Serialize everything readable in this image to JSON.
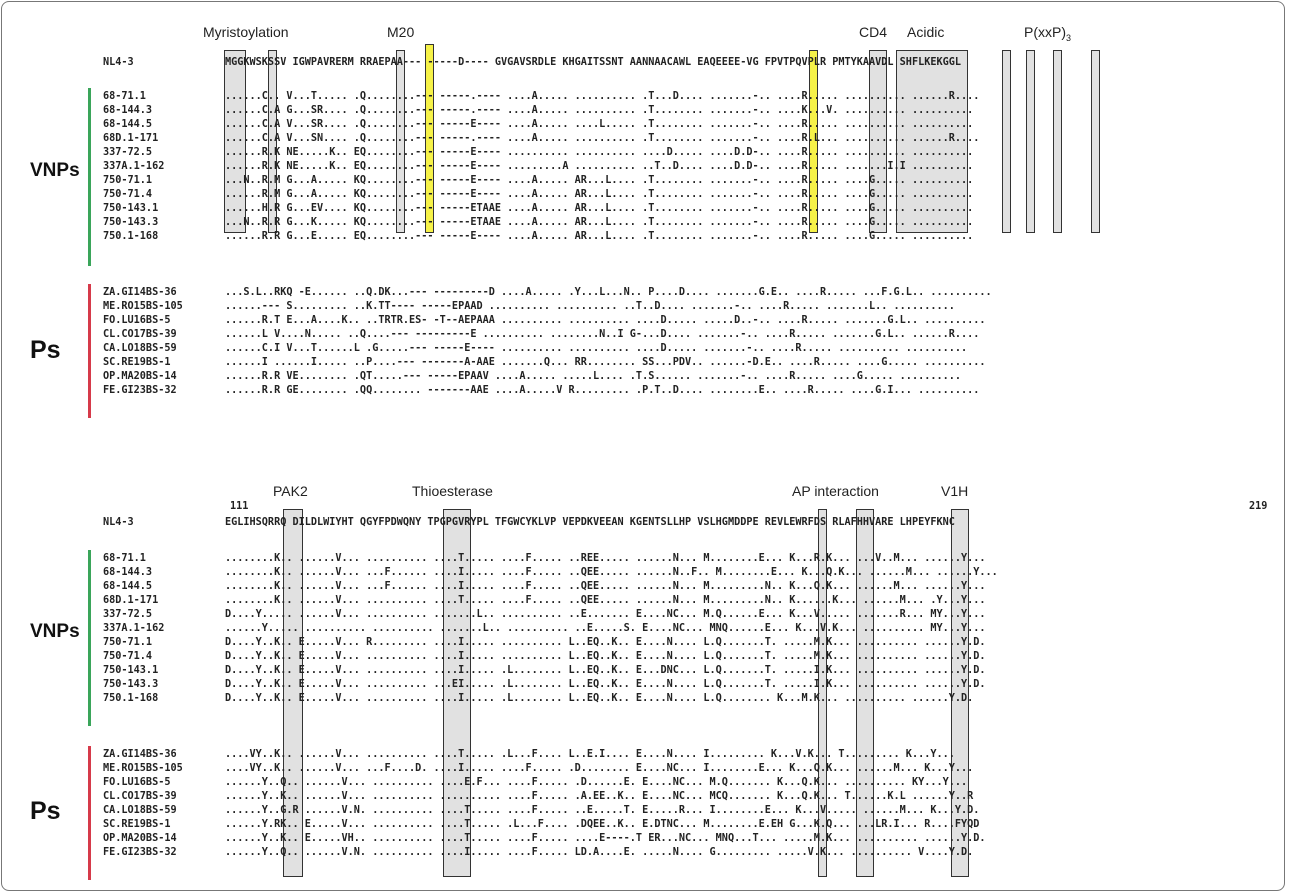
{
  "colors": {
    "vnp_bar": "#3aa55a",
    "p_bar": "#d63a4a",
    "highlight_yellow": "#f5f028",
    "highlight_gray": "#d6d6d6"
  },
  "panels": [
    {
      "start_number": "",
      "end_number": "",
      "regions": [
        {
          "label": "Myristoylation",
          "sub": ""
        },
        {
          "label": "M20",
          "sub": ""
        },
        {
          "label": "CD4",
          "sub": ""
        },
        {
          "label": "Acidic",
          "sub": ""
        },
        {
          "label": "P(xxP)",
          "sub": "3"
        }
      ],
      "reference": {
        "name": "NL4-3",
        "seq": "MGGKWSKSSV IGWPAVRERM RRAEPAA--- -----D---- GVGAVSRDLE KHGAITSSNT AANNAACAWL EAQEEEE-VG FPVTPQVPLR PMTYKAAVDL SHFLKEKGGL"
      },
      "groups": [
        {
          "label": "VNPs",
          "rows": [
            {
              "name": "68-71.1",
              "seq": "......C.. V...T..... .Q........--- -----.---- ....A..... .......... .T...D.... .......-.. ....R..... .......... ......R...."
            },
            {
              "name": "68-144.3",
              "seq": "......C.A G...SR.... .Q........--- -----.---- ....A..... .......... .T........ .......-.. ....K...V. .......... .........."
            },
            {
              "name": "68-144.5",
              "seq": "......C.A V...SR.... .Q........--- -----E---- ....A..... ....L..... .T........ .......-.. ....R..... .......... .........."
            },
            {
              "name": "68D.1-171",
              "seq": "......C.A V...SN.... .Q........--- -----.---- ....A..... .......... .T........ .......-.. ....R.L... .......... ......R...."
            },
            {
              "name": "337-72.5",
              "seq": "......R.K NE.....K.. EQ........--- -----E---- .......... .......... ....D..... ....D.D-.. ....R..... .......... .........."
            },
            {
              "name": "337A.1-162",
              "seq": "......R.K NE.....K.. EQ........--- -----E---- .........A .......... ..T..D.... ....D.D-.. ....R..... .......I.I .........."
            },
            {
              "name": "750-71.1",
              "seq": "...N..R.M G...A..... KQ........--- -----E---- ....A..... AR...L.... .T........ .......-.. ....R..... ....G..... .........."
            },
            {
              "name": "750-71.4",
              "seq": "......R.M G...A..... KQ........--- -----E---- ....A..... AR...L.... .T........ .......-.. ....R..... ....G..... .........."
            },
            {
              "name": "750-143.1",
              "seq": "......H.R G...EV.... KQ........--- -----ETAAE ....A..... AR...L.... .T........ .......-.. ....R..... ....G..... .........."
            },
            {
              "name": "750-143.3",
              "seq": "...N..R.R G...K..... KQ........--- -----ETAAE ....A..... AR...L.... .T........ .......-.. ....R..... ....G..... .........."
            },
            {
              "name": "750.1-168",
              "seq": "......R.R G...E..... EQ........--- -----E---- ....A..... AR...L.... .T........ .......-.. ....R..... ....G..... .........."
            }
          ]
        },
        {
          "label": "Ps",
          "rows": [
            {
              "name": "ZA.GI14BS-36",
              "seq": "...S.L..RKQ -E...... ..Q.DK...--- ---------D ....A..... .Y...L...N.. P....D.... .......G.E.. ....R..... ...F.G.L.. .........."
            },
            {
              "name": "ME.RO15BS-105",
              "seq": "......--- S......... ..K.TT---- -----EPAAD .......... .......... ..T..D.... .......-.. ....R..... .......L.. .........."
            },
            {
              "name": "FO.LU16BS-5",
              "seq": "......R.T E...A....K.. ..TRTR.ES- -T--AEPAAA .......... .......... ....D..... .....D..-.. ....R..... .......G.L.. .........."
            },
            {
              "name": "CL.CO17BS-39",
              "seq": "......L V....N..... ..Q....--- ---------E .......... ........N..I G-...D.... .......-.. ....R..... .......G.L.. ......R...."
            },
            {
              "name": "CA.LO18BS-59",
              "seq": "......C.I V...T......L .G.....--- -----E---- .......... .......... ....D..... .......-.. ....R..... .......... .........."
            },
            {
              "name": "SC.RE19BS-1",
              "seq": "......I ......I..... ..P....--- -------A-AAE .......Q... RR........ SS...PDV.. ......-D.E.. ....R..... ....G..... .........."
            },
            {
              "name": "OP.MA20BS-14",
              "seq": "......R.R VE........ .QT.....--- -----EPAAV ....A..... .....L.... .T.S...... .......-.. ....R..... ....G..... .........."
            },
            {
              "name": "FE.GI23BS-32",
              "seq": "......R.R GE........ .QQ........ -------AAE ....A.....V R......... .P.T..D.... ........E.. ....R..... ....G.I... .........."
            }
          ]
        }
      ]
    },
    {
      "start_number": "111",
      "end_number": "219",
      "regions": [
        {
          "label": "PAK2",
          "sub": ""
        },
        {
          "label": "Thioesterase",
          "sub": ""
        },
        {
          "label": "AP interaction",
          "sub": ""
        },
        {
          "label": "V1H",
          "sub": ""
        }
      ],
      "reference": {
        "name": "NL4-3",
        "seq": "EGLIHSQRRQ DILDLWIYHT QGYFPDWQNY TPGPGVRYPL TFGWCYKLVP VEPDKVEEAN KGENTSLLHP VSLHGMDDPE REVLEWRFDS RLAFHHVARE LHPEYFKNC"
      },
      "groups": [
        {
          "label": "VNPs",
          "rows": [
            {
              "name": "68-71.1",
              "seq": "........K.. ......V... .......... ....T..... ....F..... ..REE..... ......N... M........E... K...R.K... ...V..M... ......Y..."
            },
            {
              "name": "68-144.3",
              "seq": "........K.. ......V... ...F...... ....I..... ....F..... ..QEE..... ......N..F.. M........E... K...Q.K... ......M... ......Y..."
            },
            {
              "name": "68-144.5",
              "seq": "........K.. ......V... ...F...... ....I..... ....F..... ..QEE..... ......N... M.........N.. K...Q.K... ......M... ......Y..."
            },
            {
              "name": "68D.1-171",
              "seq": "........K.. ......V... .......... ....T..... ....F..... ..QEE..... ......N... M.........N.. K......K... ......M... .Y...Y..."
            },
            {
              "name": "337-72.5",
              "seq": "D....Y..... ......V... .......... .......L.. .......... ..E....... E....NC... M.Q......E... K...V..... .......R... MY...Y..."
            },
            {
              "name": "337A.1-162",
              "seq": "......Y..... .......... .......... .......L.. .......... ..E.....S. E....NC... MNQ......E... K...V.K... .......... MY...Y..."
            },
            {
              "name": "750-71.1",
              "seq": "D....Y..K.. E.....V... R......... ....I..... .......... L..EQ..K.. E....N.... L.Q.......T. .....M.K... .......... ......Y.D."
            },
            {
              "name": "750-71.4",
              "seq": "D....Y..K.. E.....V... .......... ....I..... .......... L..EQ..K.. E....N.... L.Q.......T. .....M.K... .......... ......Y.D."
            },
            {
              "name": "750-143.1",
              "seq": "D....Y..K.. E.....V... .......... ....I..... .L........ L..EQ..K.. E...DNC... L.Q.......T. .....I.K... .......... ......Y.D."
            },
            {
              "name": "750-143.3",
              "seq": "D....Y..K.. E.....V... .......... ...EI..... .L........ L..EQ..K.. E....N.... L.Q.......T. .....I.K... .......... ......Y.D."
            },
            {
              "name": "750.1-168",
              "seq": "D....Y..K.. E.....V... .......... ....I..... .L........ L..EQ..K.. E....N.... L.Q........ K...M.K... .......... ......Y.D."
            }
          ]
        },
        {
          "label": "Ps",
          "rows": [
            {
              "name": "ZA.GI14BS-36",
              "seq": "....VY..K.. ......V... .......... ....T..... .L...F.... L..E.I.... E....N.... I......... K...V.K... T......... K...Y..."
            },
            {
              "name": "ME.RO15BS-105",
              "seq": "....VY..K.. ......V... ...F....D. ....I..... ....F..... .D........ E....NC... I........E... K...Q.K... ......M... K...Y..."
            },
            {
              "name": "FO.LU16BS-5",
              "seq": "......Y..Q.. ......V... .......... ....E.F... ....F..... .D......E. E....NC... M.Q....... K...Q.K... .......... KY...Y..."
            },
            {
              "name": "CL.CO17BS-39",
              "seq": "......Y..K.. ......V... .......... .......... ....F..... .A.EE..K.. E....NC... MCQ....... K...Q.K... T......K.L ......Y..R"
            },
            {
              "name": "CA.LO18BS-59",
              "seq": "......Y..G.R ......V.N. .......... ....T..... ....F..... ..E.....T. E.....R... I........E... K...V..... ......M... K...Y.D."
            },
            {
              "name": "SC.RE19BS-1",
              "seq": "......Y.RK.. E.....V... .......... ....T..... .L...F.... .DQEE..K.. E.DTNC... M........E.EH G...K.Q... ...LR.I... R....FYQD"
            },
            {
              "name": "OP.MA20BS-14",
              "seq": "......Y..K.. E.....VH.. .......... ....T..... ....F..... ....E----.T ER...NC... MNQ...T... .....M.K... .......... ......Y.D."
            },
            {
              "name": "FE.GI23BS-32",
              "seq": "......Y..Q.. ......V.N. .......... ....I..... ....F..... LD.A....E. .....N.... G......... .....V.K... .......... V....Y.D."
            }
          ]
        }
      ]
    }
  ]
}
